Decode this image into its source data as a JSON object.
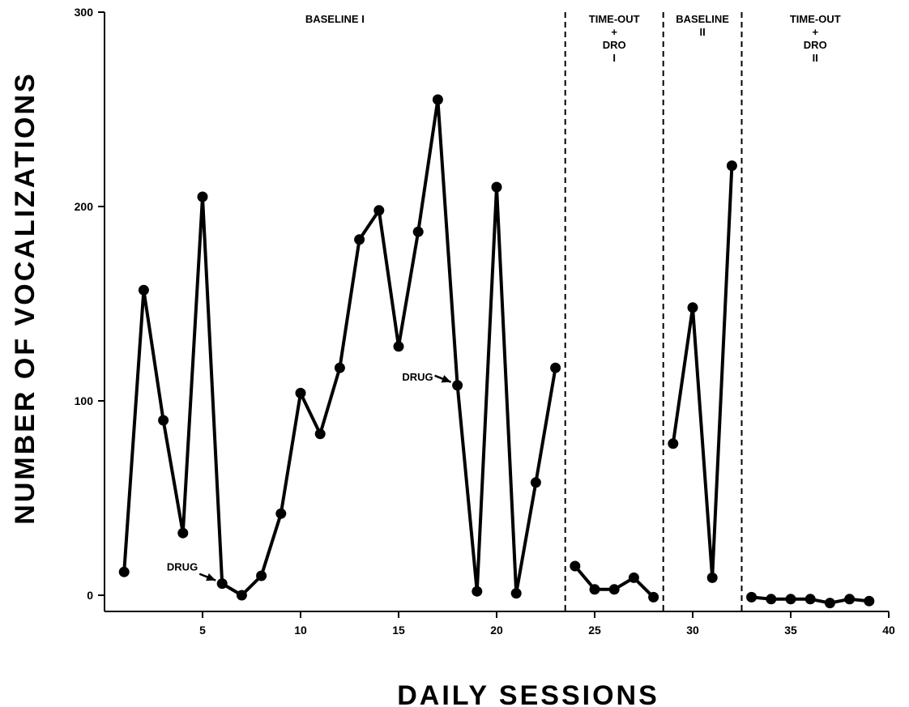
{
  "chart_data": {
    "type": "line",
    "xlabel": "DAILY SESSIONS",
    "ylabel": "NUMBER OF VOCALIZATIONS",
    "xlim": [
      0,
      40
    ],
    "ylim": [
      0,
      300
    ],
    "x_ticks": [
      5,
      10,
      15,
      20,
      25,
      30,
      35,
      40
    ],
    "y_ticks": [
      0,
      100,
      200,
      300
    ],
    "grid": false,
    "phases": [
      {
        "lines": [
          "BASELINE  I"
        ],
        "x_start": 0,
        "x_end": 23.5
      },
      {
        "lines": [
          "TIME-OUT",
          "+",
          "DRO",
          "I"
        ],
        "x_start": 23.5,
        "x_end": 28.5
      },
      {
        "lines": [
          "BASELINE",
          "II"
        ],
        "x_start": 28.5,
        "x_end": 32.5
      },
      {
        "lines": [
          "TIME-OUT",
          "+",
          "DRO",
          "II"
        ],
        "x_start": 32.5,
        "x_end": 40
      }
    ],
    "phase_boundaries": [
      23.5,
      28.5,
      32.5
    ],
    "segments": [
      {
        "x": [
          1,
          2,
          3,
          4,
          5,
          6,
          7,
          8,
          9,
          10,
          11,
          12,
          13,
          14,
          15,
          16,
          17,
          18,
          19,
          20,
          21,
          22,
          23
        ],
        "y": [
          12,
          157,
          90,
          32,
          205,
          6,
          0,
          10,
          42,
          104,
          83,
          117,
          183,
          198,
          128,
          187,
          255,
          108,
          2,
          210,
          1,
          58,
          117
        ]
      },
      {
        "x": [
          24,
          25,
          26,
          27,
          28
        ],
        "y": [
          15,
          3,
          3,
          9,
          -1
        ]
      },
      {
        "x": [
          29,
          30,
          31,
          32
        ],
        "y": [
          78,
          148,
          9,
          221
        ]
      },
      {
        "x": [
          33,
          34,
          35,
          36,
          37,
          38,
          39
        ],
        "y": [
          -1,
          -2,
          -2,
          -2,
          -4,
          -2,
          -3
        ]
      }
    ],
    "annotations": [
      {
        "text": "DRUG",
        "x": 6,
        "y": 6
      },
      {
        "text": "DRUG",
        "x": 18,
        "y": 108
      }
    ]
  }
}
